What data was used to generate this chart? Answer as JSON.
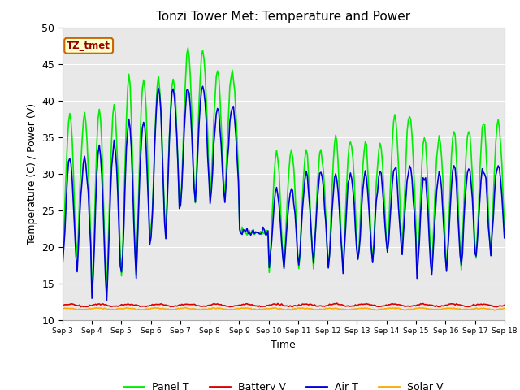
{
  "title": "Tonzi Tower Met: Temperature and Power",
  "xlabel": "Time",
  "ylabel": "Temperature (C) / Power (V)",
  "ylim": [
    10,
    50
  ],
  "bg_color": "#e8e8e8",
  "legend_label": "TZ_tmet",
  "panel_color": "#00ee00",
  "battery_color": "#dd0000",
  "air_color": "#0000dd",
  "solar_color": "#ffaa00",
  "line_width": 1.2,
  "title_fontsize": 11,
  "xtick_labels": [
    "Sep 3",
    "Sep 4",
    "Sep 5",
    "Sep 6",
    "Sep 7",
    "Sep 8",
    "Sep 9",
    "Sep 10",
    "Sep 11",
    "Sep 12",
    "Sep 13",
    "Sep 14",
    "Sep 15",
    "Sep 16",
    "Sep 17",
    "Sep 18"
  ]
}
